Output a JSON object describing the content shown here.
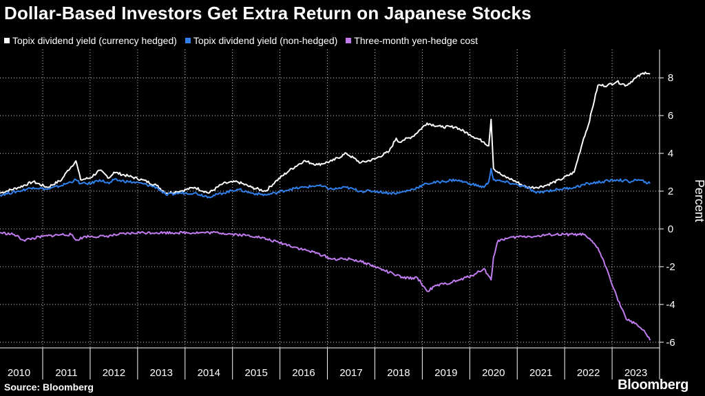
{
  "chart_data": {
    "type": "line",
    "title": "Dollar-Based Investors Get Extra Return on Japanese Stocks",
    "ylabel": "Percent",
    "xlabel": "",
    "ylim": [
      -6.3,
      9.5
    ],
    "yticks": [
      -6,
      -4,
      -2,
      0,
      2,
      4,
      6,
      8
    ],
    "xlim": [
      2009.6,
      2023.5
    ],
    "xticks": [
      "2010",
      "2011",
      "2012",
      "2013",
      "2014",
      "2015",
      "2016",
      "2017",
      "2018",
      "2019",
      "2020",
      "2021",
      "2022",
      "2023"
    ],
    "grid": true,
    "series": [
      {
        "name": "Topix dividend yield (currency hedged)",
        "color": "#ffffff",
        "x": [
          2009.6,
          2010.0,
          2010.3,
          2010.6,
          2010.9,
          2011.0,
          2011.2,
          2011.3,
          2011.5,
          2011.7,
          2011.9,
          2012.0,
          2012.3,
          2012.6,
          2012.9,
          2013.1,
          2013.4,
          2013.7,
          2014.0,
          2014.3,
          2014.6,
          2014.9,
          2015.2,
          2015.4,
          2015.7,
          2016.0,
          2016.3,
          2016.6,
          2016.9,
          2017.2,
          2017.5,
          2017.8,
          2017.95,
          2018.0,
          2018.1,
          2018.3,
          2018.6,
          2018.9,
          2019.2,
          2019.5,
          2019.8,
          2019.9,
          2019.95,
          2020.0,
          2020.2,
          2020.4,
          2020.7,
          2020.9,
          2021.1,
          2021.4,
          2021.7,
          2021.9,
          2022.0,
          2022.2,
          2022.4,
          2022.6,
          2022.8,
          2023.0,
          2023.2,
          2023.3
        ],
        "values": [
          1.9,
          2.2,
          2.5,
          2.2,
          2.6,
          3.0,
          3.6,
          2.6,
          2.7,
          3.1,
          2.7,
          3.0,
          2.8,
          2.6,
          2.3,
          1.9,
          2.0,
          2.2,
          1.9,
          2.4,
          2.5,
          2.2,
          2.0,
          2.5,
          3.1,
          3.6,
          3.4,
          3.6,
          4.0,
          3.5,
          3.7,
          4.1,
          4.8,
          4.6,
          4.7,
          4.9,
          5.6,
          5.4,
          5.4,
          5.0,
          4.6,
          4.4,
          5.8,
          3.2,
          2.8,
          2.6,
          2.2,
          2.2,
          2.3,
          2.6,
          3.0,
          4.8,
          5.5,
          7.6,
          7.6,
          7.8,
          7.6,
          8.0,
          8.3,
          8.2
        ]
      },
      {
        "name": "Topix dividend yield (non-hedged)",
        "color": "#2f80ed",
        "x": [
          2009.6,
          2010.0,
          2010.3,
          2010.6,
          2010.9,
          2011.0,
          2011.2,
          2011.3,
          2011.5,
          2011.7,
          2011.9,
          2012.0,
          2012.3,
          2012.6,
          2012.9,
          2013.1,
          2013.4,
          2013.7,
          2014.0,
          2014.3,
          2014.6,
          2014.9,
          2015.2,
          2015.4,
          2015.7,
          2016.0,
          2016.3,
          2016.6,
          2016.9,
          2017.2,
          2017.5,
          2017.8,
          2018.0,
          2018.3,
          2018.6,
          2018.9,
          2019.2,
          2019.5,
          2019.8,
          2019.9,
          2019.95,
          2020.0,
          2020.2,
          2020.4,
          2020.7,
          2020.9,
          2021.1,
          2021.4,
          2021.7,
          2022.0,
          2022.3,
          2022.6,
          2022.9,
          2023.0,
          2023.2,
          2023.3
        ],
        "values": [
          1.8,
          2.0,
          2.2,
          2.1,
          2.3,
          2.4,
          2.6,
          2.4,
          2.4,
          2.6,
          2.4,
          2.6,
          2.5,
          2.4,
          2.2,
          1.8,
          1.9,
          1.9,
          1.7,
          1.9,
          2.1,
          1.9,
          1.8,
          1.9,
          2.1,
          2.2,
          2.3,
          2.1,
          2.2,
          2.0,
          2.0,
          1.9,
          1.9,
          2.1,
          2.4,
          2.5,
          2.6,
          2.4,
          2.2,
          2.5,
          3.2,
          2.6,
          2.5,
          2.4,
          2.2,
          1.9,
          2.0,
          2.1,
          2.2,
          2.4,
          2.5,
          2.6,
          2.5,
          2.6,
          2.5,
          2.4
        ]
      },
      {
        "name": "Three-month yen-hedge cost",
        "color": "#c17cf0",
        "x": [
          2009.6,
          2009.9,
          2010.1,
          2010.5,
          2010.9,
          2011.1,
          2011.2,
          2011.4,
          2011.8,
          2012.1,
          2012.5,
          2012.9,
          2013.3,
          2013.8,
          2014.2,
          2014.6,
          2015.0,
          2015.3,
          2015.6,
          2016.0,
          2016.3,
          2016.6,
          2017.0,
          2017.3,
          2017.6,
          2017.9,
          2018.1,
          2018.4,
          2018.6,
          2018.8,
          2019.0,
          2019.3,
          2019.6,
          2019.8,
          2019.9,
          2019.95,
          2020.0,
          2020.1,
          2020.3,
          2020.6,
          2020.9,
          2021.2,
          2021.5,
          2021.8,
          2021.9,
          2022.0,
          2022.2,
          2022.4,
          2022.6,
          2022.8,
          2023.0,
          2023.2,
          2023.3
        ],
        "values": [
          -0.2,
          -0.3,
          -0.6,
          -0.4,
          -0.3,
          -0.3,
          -0.6,
          -0.4,
          -0.4,
          -0.3,
          -0.2,
          -0.2,
          -0.2,
          -0.2,
          -0.2,
          -0.3,
          -0.4,
          -0.6,
          -0.8,
          -1.1,
          -1.3,
          -1.6,
          -1.6,
          -1.8,
          -2.1,
          -2.4,
          -2.6,
          -2.6,
          -3.3,
          -3.0,
          -2.9,
          -2.7,
          -2.4,
          -2.1,
          -2.5,
          -2.7,
          -1.5,
          -0.6,
          -0.5,
          -0.4,
          -0.4,
          -0.3,
          -0.3,
          -0.3,
          -0.3,
          -0.5,
          -1.0,
          -2.2,
          -3.6,
          -4.8,
          -5.0,
          -5.5,
          -5.9
        ]
      }
    ]
  },
  "legend_labels": [
    "Topix dividend yield (currency hedged)",
    "Topix dividend yield (non-hedged)",
    "Three-month yen-hedge cost"
  ],
  "source": "Source: Bloomberg",
  "brand": "Bloomberg"
}
